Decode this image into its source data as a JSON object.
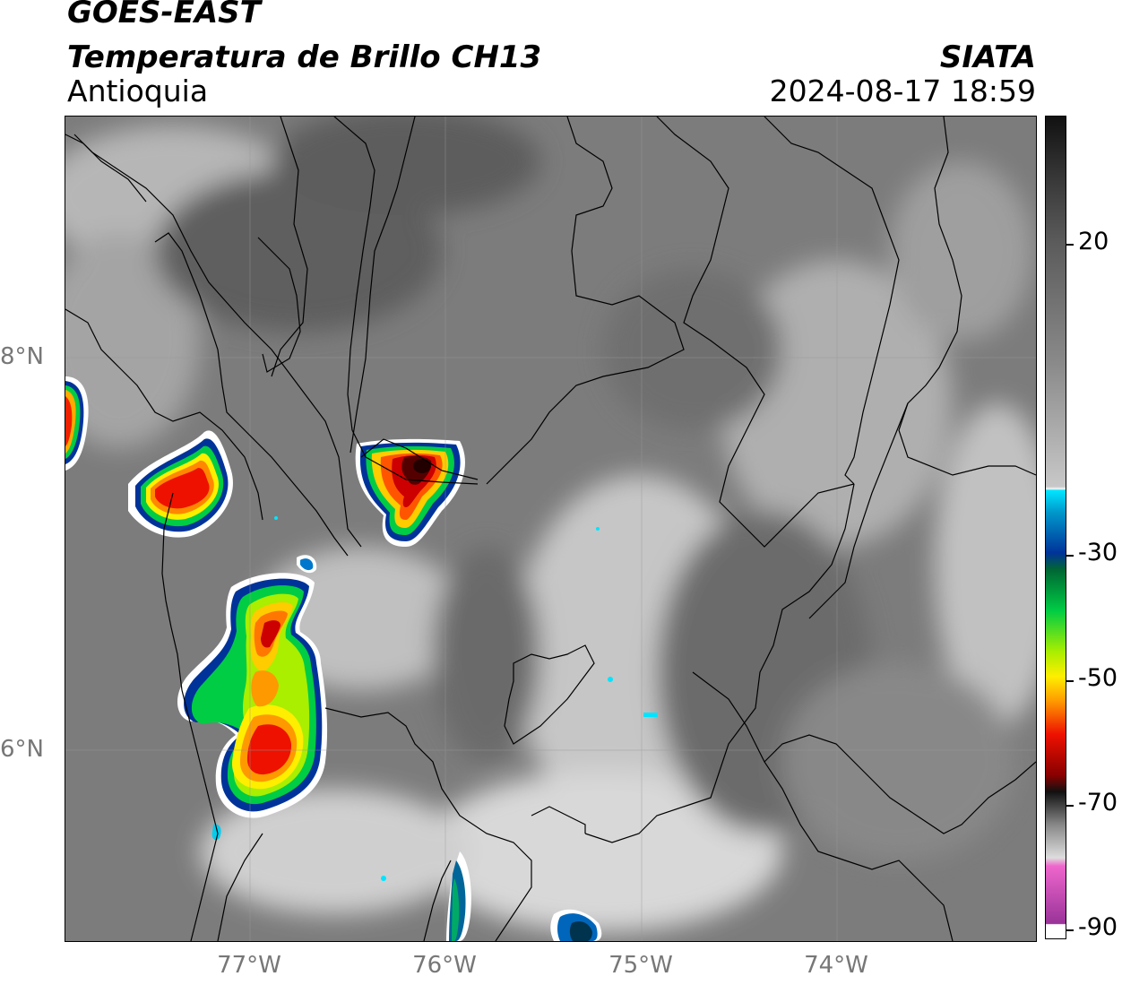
{
  "header": {
    "satellite": "GOES-EAST",
    "product": "Temperatura de Brillo CH13",
    "region": "Antioquia",
    "org": "SIATA",
    "datetime": "2024-08-17 18:59"
  },
  "axes": {
    "lat_labels": [
      "8°N",
      "6°N"
    ],
    "lon_labels": [
      "77°W",
      "76°W",
      "75°W",
      "74°W"
    ]
  },
  "colorbar": {
    "labels": [
      "20",
      "-30",
      "-50",
      "-70",
      "-90"
    ],
    "colors": {
      "gray_top": "#111111",
      "gray_light": "#f5f5f5",
      "cyan": "#00e5ff",
      "blue": "#003399",
      "green": "#00cc44",
      "yellow": "#ffee00",
      "orange": "#ff9900",
      "red": "#ee1100",
      "darkred": "#550000",
      "magenta": "#cc33cc"
    }
  }
}
